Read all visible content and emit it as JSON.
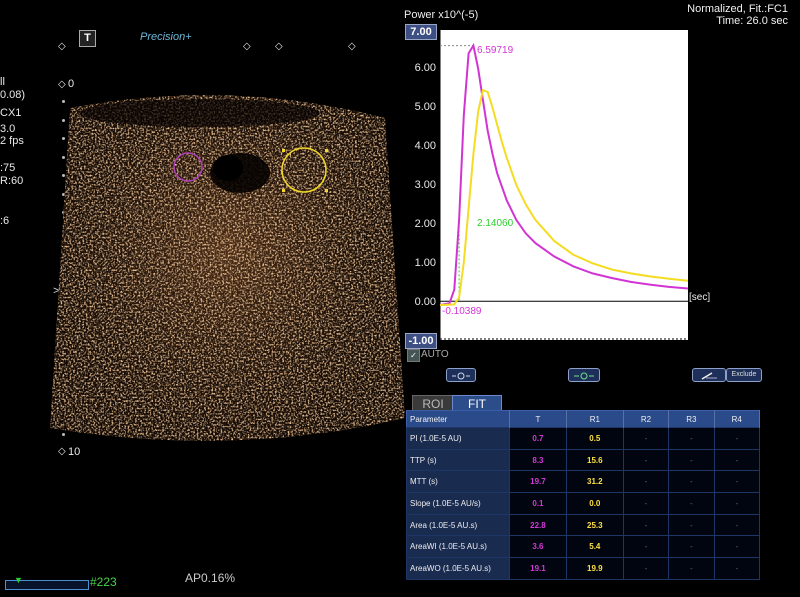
{
  "left_panel": {
    "t_badge": "T",
    "precision": "Precision+",
    "params": [
      "ll",
      "0.08)",
      "CX1",
      "3.0",
      "2 fps",
      ":75",
      "R:60",
      ":6"
    ],
    "depth_labels": [
      "0",
      "5",
      "10"
    ],
    "frame_number": "#223",
    "ap_text": "AP0.16%",
    "roi_colors": {
      "roi1": "#b23fb8",
      "roi2": "#f1d828"
    }
  },
  "chart": {
    "header_line1": "Normalized, Fit.:FC1",
    "header_line2": "Time: 26.0 sec",
    "power_label": "Power x10^(-5)",
    "ymax_box": "7.00",
    "ymin_box": "-1.00",
    "y_ticks": [
      "6.00",
      "5.00",
      "4.00",
      "3.00",
      "2.00",
      "1.00",
      "0.00"
    ],
    "x_unit": "[sec]",
    "peak_label": "6.59719",
    "mid_label": "2.14060",
    "base_label": "-0.10389",
    "auto_label": "AUTO",
    "exclude_label": "Exclude"
  },
  "chart_data": {
    "type": "line",
    "xlabel": "[sec]",
    "ylabel": "Power x10^(-5)",
    "ylim": [
      -1,
      7
    ],
    "xlim": [
      0,
      26
    ],
    "series": [
      {
        "color": "#d234d4",
        "x": [
          0,
          1,
          1.5,
          2,
          2.5,
          3,
          3.5,
          4,
          4.5,
          5,
          5.5,
          6,
          7,
          8,
          9,
          10,
          12,
          14,
          16,
          18,
          20,
          22,
          24,
          26
        ],
        "y": [
          -0.1,
          -0.05,
          0.3,
          2.1,
          4.8,
          6.4,
          6.6,
          6.0,
          5.2,
          4.4,
          3.8,
          3.3,
          2.6,
          2.1,
          1.75,
          1.5,
          1.15,
          0.9,
          0.72,
          0.6,
          0.5,
          0.43,
          0.37,
          0.33
        ]
      },
      {
        "color": "#f4dc23",
        "x": [
          0,
          1.5,
          2,
          2.5,
          3,
          3.5,
          4,
          4.5,
          5,
          5.5,
          6,
          6.5,
          7,
          8,
          9,
          10,
          12,
          14,
          16,
          18,
          20,
          22,
          24,
          26
        ],
        "y": [
          -0.1,
          -0.08,
          0.1,
          1.0,
          2.4,
          3.8,
          4.9,
          5.45,
          5.4,
          5.0,
          4.55,
          4.1,
          3.7,
          3.0,
          2.5,
          2.1,
          1.55,
          1.2,
          0.98,
          0.82,
          0.72,
          0.64,
          0.58,
          0.53
        ]
      }
    ]
  },
  "tabs": [
    {
      "label": "ROI"
    },
    {
      "label": "FIT"
    }
  ],
  "table": {
    "columns": [
      "Parameter",
      "T",
      "R1",
      "R2",
      "R3",
      "R4"
    ],
    "rows": [
      {
        "param": "PI (1.0E-5 AU)",
        "T": "0.7",
        "R1": "0.5",
        "R2": "-",
        "R3": "-",
        "R4": "-"
      },
      {
        "param": "TTP (s)",
        "T": "8.3",
        "R1": "15.6",
        "R2": "-",
        "R3": "-",
        "R4": "-"
      },
      {
        "param": "MTT (s)",
        "T": "19.7",
        "R1": "31.2",
        "R2": "-",
        "R3": "-",
        "R4": "-"
      },
      {
        "param": "Slope (1.0E-5 AU/s)",
        "T": "0.1",
        "R1": "0.0",
        "R2": "-",
        "R3": "-",
        "R4": "-"
      },
      {
        "param": "Area (1.0E-5 AU.s)",
        "T": "22.8",
        "R1": "25.3",
        "R2": "-",
        "R3": "-",
        "R4": "-"
      },
      {
        "param": "AreaWI (1.0E-5 AU.s)",
        "T": "3.6",
        "R1": "5.4",
        "R2": "-",
        "R3": "-",
        "R4": "-"
      },
      {
        "param": "AreaWO (1.0E-5 AU.s)",
        "T": "19.1",
        "R1": "19.9",
        "R2": "-",
        "R3": "-",
        "R4": "-"
      }
    ]
  }
}
